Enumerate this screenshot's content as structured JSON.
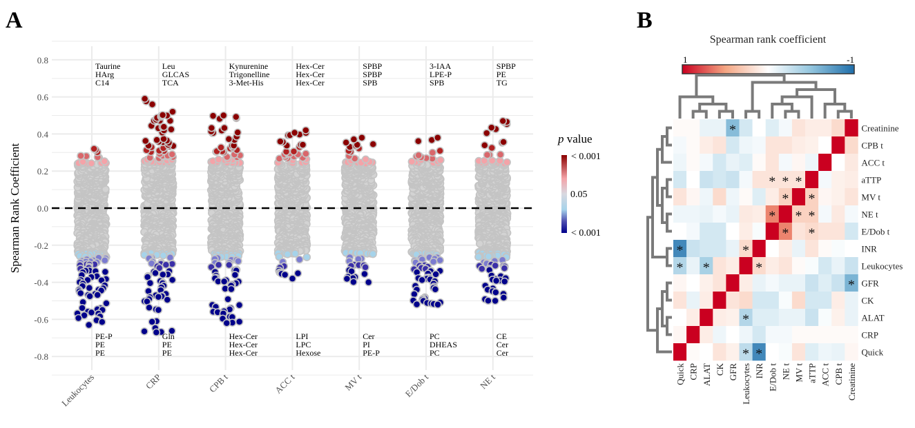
{
  "panels": {
    "a": "A",
    "b": "B"
  },
  "chart_data": [
    {
      "type": "scatter",
      "subtype": "jitter-strip",
      "ylabel": "Spearman Rank Coefficient",
      "xlabel": "",
      "ylim": [
        -0.88,
        0.88
      ],
      "yticks": [
        "0.8",
        "0.6",
        "0.4",
        "0.2",
        "0.0",
        "-0.2",
        "-0.4",
        "-0.6",
        "-0.8"
      ],
      "ytick_values": [
        0.8,
        0.6,
        0.4,
        0.2,
        0.0,
        -0.2,
        -0.4,
        -0.6,
        -0.8
      ],
      "reference_line": 0.0,
      "grid": true,
      "categories": [
        "Leukocytes",
        "CRP",
        "CPB t",
        "ACC t",
        "MV t",
        "E/Dob t",
        "NE t"
      ],
      "significance_threshold_abs_r": 0.24,
      "series": [
        {
          "name": "Leukocytes",
          "max_r": 0.32,
          "min_r": -0.63,
          "n_nonsig": 600,
          "n_sig_pos": 8,
          "n_sig_neg": 80,
          "top_labels": [
            "Taurine",
            "HArg",
            "C14"
          ],
          "bottom_labels": [
            "PE-P",
            "PE",
            "PE"
          ]
        },
        {
          "name": "CRP",
          "max_r": 0.59,
          "min_r": -0.67,
          "n_nonsig": 600,
          "n_sig_pos": 70,
          "n_sig_neg": 60,
          "top_labels": [
            "Leu",
            "GLCAS",
            "TCA"
          ],
          "bottom_labels": [
            "Gln",
            "PE",
            "PE"
          ]
        },
        {
          "name": "CPB t",
          "max_r": 0.5,
          "min_r": -0.62,
          "n_nonsig": 600,
          "n_sig_pos": 40,
          "n_sig_neg": 60,
          "top_labels": [
            "Kynurenine",
            "Trigonelline",
            "3-Met-His"
          ],
          "bottom_labels": [
            "Hex-Cer",
            "Hex-Cer",
            "Hex-Cer"
          ]
        },
        {
          "name": "ACC t",
          "max_r": 0.42,
          "min_r": -0.38,
          "n_nonsig": 600,
          "n_sig_pos": 30,
          "n_sig_neg": 15,
          "top_labels": [
            "Hex-Cer",
            "Hex-Cer",
            "Hex-Cer"
          ],
          "bottom_labels": [
            "LPI",
            "LPC",
            "Hexose"
          ]
        },
        {
          "name": "MV t",
          "max_r": 0.38,
          "min_r": -0.4,
          "n_nonsig": 600,
          "n_sig_pos": 20,
          "n_sig_neg": 20,
          "top_labels": [
            "SPBP",
            "SPBP",
            "SPB"
          ],
          "bottom_labels": [
            "Cer",
            "PI",
            "PE-P"
          ]
        },
        {
          "name": "E/Dob t",
          "max_r": 0.38,
          "min_r": -0.52,
          "n_nonsig": 600,
          "n_sig_pos": 15,
          "n_sig_neg": 60,
          "top_labels": [
            "3-IAA",
            "LPE-P",
            "SPB"
          ],
          "bottom_labels": [
            "PC",
            "DHEAS",
            "PC"
          ]
        },
        {
          "name": "NE t",
          "max_r": 0.47,
          "min_r": -0.5,
          "n_nonsig": 600,
          "n_sig_pos": 25,
          "n_sig_neg": 50,
          "top_labels": [
            "SPBP",
            "PE",
            "TG"
          ],
          "bottom_labels": [
            "CE",
            "Cer",
            "Cer"
          ]
        }
      ],
      "legend": {
        "title_italic": "p",
        "title_rest": " value",
        "labels": [
          "< 0.001",
          "0.05",
          "< 0.001"
        ],
        "placement": "right",
        "colors": {
          "pos_strong": "#8b0000",
          "pos_weak": "#f4a3a8",
          "neutral": "#d3d3d3",
          "neg_weak": "#a6d3ea",
          "neg_strong": "#00008b"
        }
      }
    },
    {
      "type": "heatmap",
      "title": "Spearman rank coefficient",
      "colorbar_labels": [
        "1",
        "-1"
      ],
      "colorbar_range": [
        1,
        -1
      ],
      "colors": {
        "high": "#ca0020",
        "mid": "#ffffff",
        "low": "#1f6eaa"
      },
      "columns": [
        "Quick",
        "CRP",
        "ALAT",
        "CK",
        "GFR",
        "Leukocytes",
        "INR",
        "E/Dob t",
        "NE t",
        "MV t",
        "aTTP",
        "ACC t",
        "CPB t",
        "Creatinine"
      ],
      "rows": [
        "Creatinine",
        "CPB t",
        "ACC t",
        "aTTP",
        "MV t",
        "NE t",
        "E/Dob t",
        "INR",
        "Leukocytes",
        "GFR",
        "CK",
        "ALAT",
        "CRP",
        "Quick"
      ],
      "values": [
        [
          0.03,
          0.03,
          -0.1,
          -0.1,
          -0.55,
          -0.2,
          0,
          -0.15,
          -0.05,
          0.15,
          0.1,
          0.1,
          0.2,
          1
        ],
        [
          -0.05,
          0.03,
          0.1,
          0.15,
          -0.2,
          -0.08,
          -0.05,
          0.15,
          0.15,
          0.1,
          0.08,
          0,
          1,
          0.2
        ],
        [
          -0.08,
          0.03,
          -0.05,
          -0.2,
          -0.1,
          -0.15,
          0.03,
          0.15,
          -0.05,
          0.05,
          -0.08,
          1,
          0,
          0.12
        ],
        [
          -0.2,
          0,
          -0.25,
          -0.2,
          -0.25,
          -0.05,
          0.15,
          0.15,
          0.15,
          0.15,
          1,
          -0.05,
          0.08,
          0.1
        ],
        [
          0.15,
          0.05,
          -0.08,
          0.2,
          -0.08,
          0.03,
          -0.15,
          0.1,
          0.25,
          1,
          0.25,
          0.05,
          0.08,
          0.15
        ],
        [
          -0.08,
          -0.08,
          -0.1,
          -0.05,
          -0.1,
          0.12,
          0.1,
          0.6,
          1,
          0.25,
          0.25,
          -0.05,
          0.12,
          -0.05
        ],
        [
          0,
          -0.05,
          -0.2,
          -0.2,
          0,
          0.1,
          -0.03,
          1,
          0.6,
          0.15,
          0.2,
          0.15,
          0.15,
          -0.2
        ],
        [
          -0.85,
          -0.25,
          -0.2,
          -0.2,
          -0.1,
          0.2,
          1,
          0,
          0.1,
          -0.1,
          0.15,
          0.03,
          -0.03,
          0
        ],
        [
          -0.35,
          -0.1,
          -0.4,
          0.15,
          0.1,
          1,
          0.2,
          0.1,
          0.15,
          0.03,
          -0.03,
          -0.2,
          -0.1,
          -0.25
        ],
        [
          0.05,
          0,
          0.08,
          0.15,
          1,
          0.1,
          -0.1,
          -0.05,
          -0.1,
          -0.1,
          -0.25,
          -0.15,
          -0.25,
          -0.6
        ],
        [
          0.15,
          -0.1,
          0.1,
          1,
          0.15,
          0.2,
          -0.2,
          -0.2,
          -0.03,
          0.2,
          -0.2,
          -0.2,
          0.1,
          -0.1
        ],
        [
          0,
          0.1,
          1,
          0.1,
          0.08,
          -0.35,
          -0.15,
          -0.15,
          -0.1,
          -0.1,
          -0.25,
          -0.03,
          0.08,
          -0.1
        ],
        [
          0.05,
          1,
          0.1,
          -0.08,
          0,
          -0.08,
          -0.2,
          -0.05,
          -0.05,
          0.03,
          0.03,
          0.03,
          0.03,
          0.03
        ],
        [
          1,
          0.03,
          0,
          0.15,
          0.08,
          -0.3,
          -0.85,
          0,
          -0.03,
          0.15,
          -0.15,
          -0.08,
          -0.1,
          0.05
        ]
      ],
      "significant_marker": "*",
      "significant_cells": [
        [
          0,
          4
        ],
        [
          3,
          7
        ],
        [
          3,
          8
        ],
        [
          3,
          9
        ],
        [
          4,
          8
        ],
        [
          4,
          10
        ],
        [
          5,
          7
        ],
        [
          5,
          9
        ],
        [
          5,
          10
        ],
        [
          6,
          8
        ],
        [
          6,
          10
        ],
        [
          7,
          0
        ],
        [
          7,
          5
        ],
        [
          8,
          0
        ],
        [
          8,
          2
        ],
        [
          8,
          6
        ],
        [
          9,
          13
        ],
        [
          11,
          5
        ],
        [
          13,
          5
        ],
        [
          13,
          6
        ]
      ]
    }
  ]
}
